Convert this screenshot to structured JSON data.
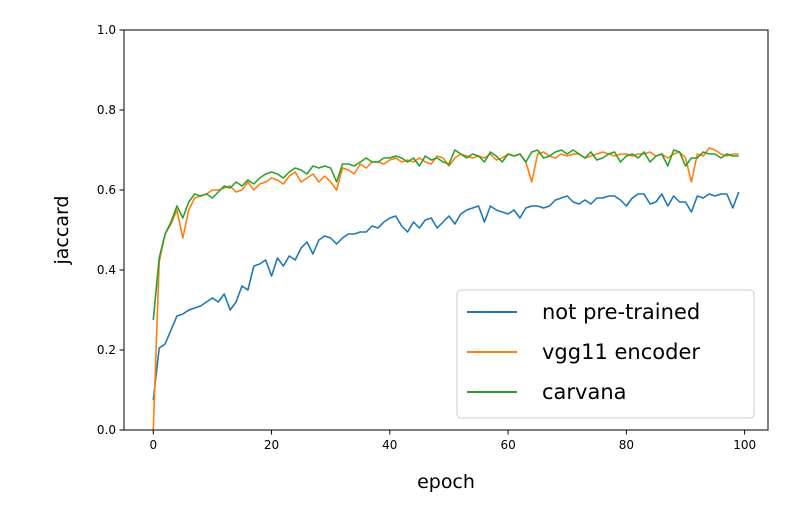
{
  "chart_data": {
    "type": "line",
    "xlabel": "epoch",
    "ylabel": "jaccard",
    "xlim": [
      -4.95,
      103.95
    ],
    "ylim": [
      0.0,
      1.0
    ],
    "xticks": [
      0,
      20,
      40,
      60,
      80,
      100
    ],
    "yticks": [
      0.0,
      0.2,
      0.4,
      0.6,
      0.8,
      1.0
    ],
    "xtick_labels": [
      "0",
      "20",
      "40",
      "60",
      "80",
      "100"
    ],
    "ytick_labels": [
      "0.0",
      "0.2",
      "0.4",
      "0.6",
      "0.8",
      "1.0"
    ],
    "grid": false,
    "legend_position": "lower-right",
    "x": [
      0,
      1,
      2,
      3,
      4,
      5,
      6,
      7,
      8,
      9,
      10,
      11,
      12,
      13,
      14,
      15,
      16,
      17,
      18,
      19,
      20,
      21,
      22,
      23,
      24,
      25,
      26,
      27,
      28,
      29,
      30,
      31,
      32,
      33,
      34,
      35,
      36,
      37,
      38,
      39,
      40,
      41,
      42,
      43,
      44,
      45,
      46,
      47,
      48,
      49,
      50,
      51,
      52,
      53,
      54,
      55,
      56,
      57,
      58,
      59,
      60,
      61,
      62,
      63,
      64,
      65,
      66,
      67,
      68,
      69,
      70,
      71,
      72,
      73,
      74,
      75,
      76,
      77,
      78,
      79,
      80,
      81,
      82,
      83,
      84,
      85,
      86,
      87,
      88,
      89,
      90,
      91,
      92,
      93,
      94,
      95,
      96,
      97,
      98,
      99
    ],
    "series": [
      {
        "name": "not pre-trained",
        "color": "#1f77b4",
        "values": [
          0.075,
          0.205,
          0.215,
          0.25,
          0.285,
          0.29,
          0.3,
          0.305,
          0.31,
          0.32,
          0.33,
          0.32,
          0.34,
          0.3,
          0.32,
          0.36,
          0.35,
          0.41,
          0.415,
          0.425,
          0.385,
          0.43,
          0.41,
          0.435,
          0.425,
          0.455,
          0.47,
          0.44,
          0.475,
          0.485,
          0.48,
          0.465,
          0.48,
          0.49,
          0.49,
          0.495,
          0.495,
          0.51,
          0.505,
          0.52,
          0.53,
          0.535,
          0.51,
          0.495,
          0.52,
          0.505,
          0.525,
          0.53,
          0.505,
          0.52,
          0.535,
          0.515,
          0.54,
          0.55,
          0.555,
          0.56,
          0.52,
          0.56,
          0.55,
          0.545,
          0.54,
          0.55,
          0.53,
          0.555,
          0.56,
          0.56,
          0.555,
          0.56,
          0.575,
          0.58,
          0.585,
          0.57,
          0.565,
          0.575,
          0.565,
          0.58,
          0.58,
          0.585,
          0.585,
          0.575,
          0.56,
          0.58,
          0.59,
          0.59,
          0.565,
          0.57,
          0.59,
          0.56,
          0.585,
          0.57,
          0.57,
          0.545,
          0.585,
          0.58,
          0.59,
          0.585,
          0.59,
          0.59,
          0.555,
          0.595
        ]
      },
      {
        "name": "vgg11 encoder",
        "color": "#ff7f0e",
        "values": [
          0.0,
          0.42,
          0.49,
          0.515,
          0.55,
          0.48,
          0.55,
          0.58,
          0.585,
          0.59,
          0.6,
          0.6,
          0.605,
          0.61,
          0.595,
          0.6,
          0.62,
          0.6,
          0.615,
          0.62,
          0.63,
          0.625,
          0.615,
          0.635,
          0.645,
          0.62,
          0.63,
          0.64,
          0.62,
          0.635,
          0.62,
          0.6,
          0.655,
          0.65,
          0.64,
          0.665,
          0.655,
          0.67,
          0.67,
          0.665,
          0.675,
          0.68,
          0.67,
          0.675,
          0.67,
          0.68,
          0.67,
          0.665,
          0.685,
          0.68,
          0.66,
          0.68,
          0.69,
          0.685,
          0.68,
          0.685,
          0.68,
          0.69,
          0.675,
          0.68,
          0.69,
          0.685,
          0.69,
          0.67,
          0.62,
          0.69,
          0.695,
          0.685,
          0.68,
          0.69,
          0.685,
          0.69,
          0.69,
          0.68,
          0.685,
          0.69,
          0.695,
          0.69,
          0.685,
          0.69,
          0.69,
          0.685,
          0.69,
          0.69,
          0.695,
          0.685,
          0.69,
          0.68,
          0.69,
          0.695,
          0.68,
          0.62,
          0.69,
          0.685,
          0.705,
          0.7,
          0.69,
          0.685,
          0.69,
          0.69
        ]
      },
      {
        "name": "carvana",
        "color": "#2ca02c",
        "values": [
          0.275,
          0.43,
          0.49,
          0.52,
          0.56,
          0.53,
          0.57,
          0.59,
          0.585,
          0.59,
          0.58,
          0.595,
          0.61,
          0.605,
          0.62,
          0.61,
          0.625,
          0.615,
          0.63,
          0.64,
          0.645,
          0.64,
          0.63,
          0.645,
          0.655,
          0.65,
          0.64,
          0.66,
          0.655,
          0.66,
          0.655,
          0.62,
          0.665,
          0.665,
          0.66,
          0.67,
          0.68,
          0.67,
          0.67,
          0.68,
          0.68,
          0.685,
          0.68,
          0.67,
          0.68,
          0.66,
          0.685,
          0.675,
          0.68,
          0.67,
          0.665,
          0.7,
          0.69,
          0.68,
          0.69,
          0.685,
          0.67,
          0.695,
          0.685,
          0.67,
          0.69,
          0.685,
          0.69,
          0.67,
          0.695,
          0.7,
          0.68,
          0.685,
          0.695,
          0.7,
          0.69,
          0.7,
          0.69,
          0.68,
          0.695,
          0.675,
          0.68,
          0.69,
          0.695,
          0.67,
          0.685,
          0.69,
          0.68,
          0.695,
          0.67,
          0.685,
          0.69,
          0.66,
          0.7,
          0.695,
          0.66,
          0.68,
          0.68,
          0.695,
          0.69,
          0.69,
          0.68,
          0.69,
          0.685,
          0.685
        ]
      }
    ]
  }
}
